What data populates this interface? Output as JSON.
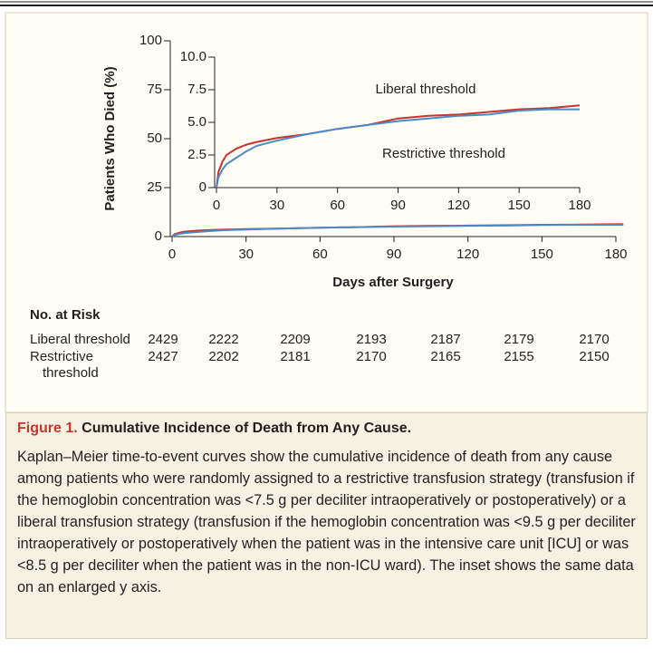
{
  "chart_data": [
    {
      "type": "line",
      "ylabel": "Patients Who Died (%)",
      "xlabel": "Days after Surgery",
      "xlim": [
        0,
        180
      ],
      "ylim": [
        0,
        100
      ],
      "xticks": [
        0,
        30,
        60,
        90,
        120,
        150,
        180
      ],
      "yticks": [
        0,
        25,
        50,
        75,
        100
      ],
      "x": [
        0,
        1,
        3,
        5,
        10,
        15,
        20,
        30,
        45,
        60,
        75,
        90,
        105,
        120,
        135,
        150,
        165,
        180,
        183
      ],
      "series": [
        {
          "name": "Liberal threshold",
          "color": "#c4352a",
          "values": [
            0,
            1.2,
            2.0,
            2.5,
            3.0,
            3.3,
            3.5,
            3.8,
            4.1,
            4.5,
            4.8,
            5.3,
            5.5,
            5.6,
            5.8,
            6.0,
            6.1,
            6.3,
            6.3
          ]
        },
        {
          "name": "Restrictive threshold",
          "color": "#4a8ac8",
          "values": [
            0,
            0.8,
            1.4,
            1.8,
            2.3,
            2.8,
            3.2,
            3.6,
            4.1,
            4.5,
            4.8,
            5.1,
            5.3,
            5.5,
            5.6,
            5.9,
            6.0,
            6.0,
            6.0
          ]
        }
      ]
    },
    {
      "type": "line",
      "xlim": [
        0,
        180
      ],
      "ylim": [
        0,
        10
      ],
      "xticks": [
        0,
        30,
        60,
        90,
        120,
        150,
        180
      ],
      "yticks": [
        0,
        2.5,
        {
          "value": 5,
          "label": "5.0"
        },
        7.5,
        {
          "value": 10,
          "label": "10.0"
        }
      ],
      "annotations": [
        "Liberal threshold",
        "Restrictive threshold"
      ],
      "x": [
        0,
        1,
        3,
        5,
        10,
        15,
        20,
        30,
        45,
        60,
        75,
        90,
        105,
        120,
        135,
        150,
        165,
        180
      ],
      "series": [
        {
          "name": "Liberal threshold",
          "color": "#c4352a",
          "values": [
            0,
            1.2,
            2.0,
            2.5,
            3.0,
            3.3,
            3.5,
            3.8,
            4.1,
            4.5,
            4.8,
            5.3,
            5.5,
            5.6,
            5.8,
            6.0,
            6.1,
            6.3
          ]
        },
        {
          "name": "Restrictive threshold",
          "color": "#4a8ac8",
          "values": [
            0,
            0.8,
            1.4,
            1.8,
            2.3,
            2.8,
            3.2,
            3.6,
            4.1,
            4.5,
            4.8,
            5.1,
            5.3,
            5.5,
            5.6,
            5.9,
            6.0,
            6.0
          ]
        }
      ]
    }
  ],
  "risk_table": {
    "title": "No. at Risk",
    "rows": [
      {
        "label": "Liberal threshold",
        "values": [
          2429,
          2222,
          2209,
          2193,
          2187,
          2179,
          2170
        ]
      },
      {
        "label": "Restrictive threshold",
        "values": [
          2427,
          2202,
          2181,
          2170,
          2165,
          2155,
          2150
        ]
      }
    ]
  },
  "caption": {
    "label": "Figure 1.",
    "title": "Cumulative Incidence of Death from Any Cause.",
    "text": "Kaplan–Meier time-to-event curves show the cumulative incidence of death from any cause among patients who were randomly assigned to a restrictive transfusion strategy (transfusion if the hemoglobin concentration was <7.5 g per deciliter intraoperatively or postoperatively) or a liberal transfusion strategy (transfusion if the hemoglobin concentration was <9.5 g per deciliter intraoperatively or postoperatively when the patient was in the intensive care unit [ICU] or was <8.5 g per deciliter when the patient was in the non-ICU ward). The inset shows the same data on an enlarged y axis."
  }
}
